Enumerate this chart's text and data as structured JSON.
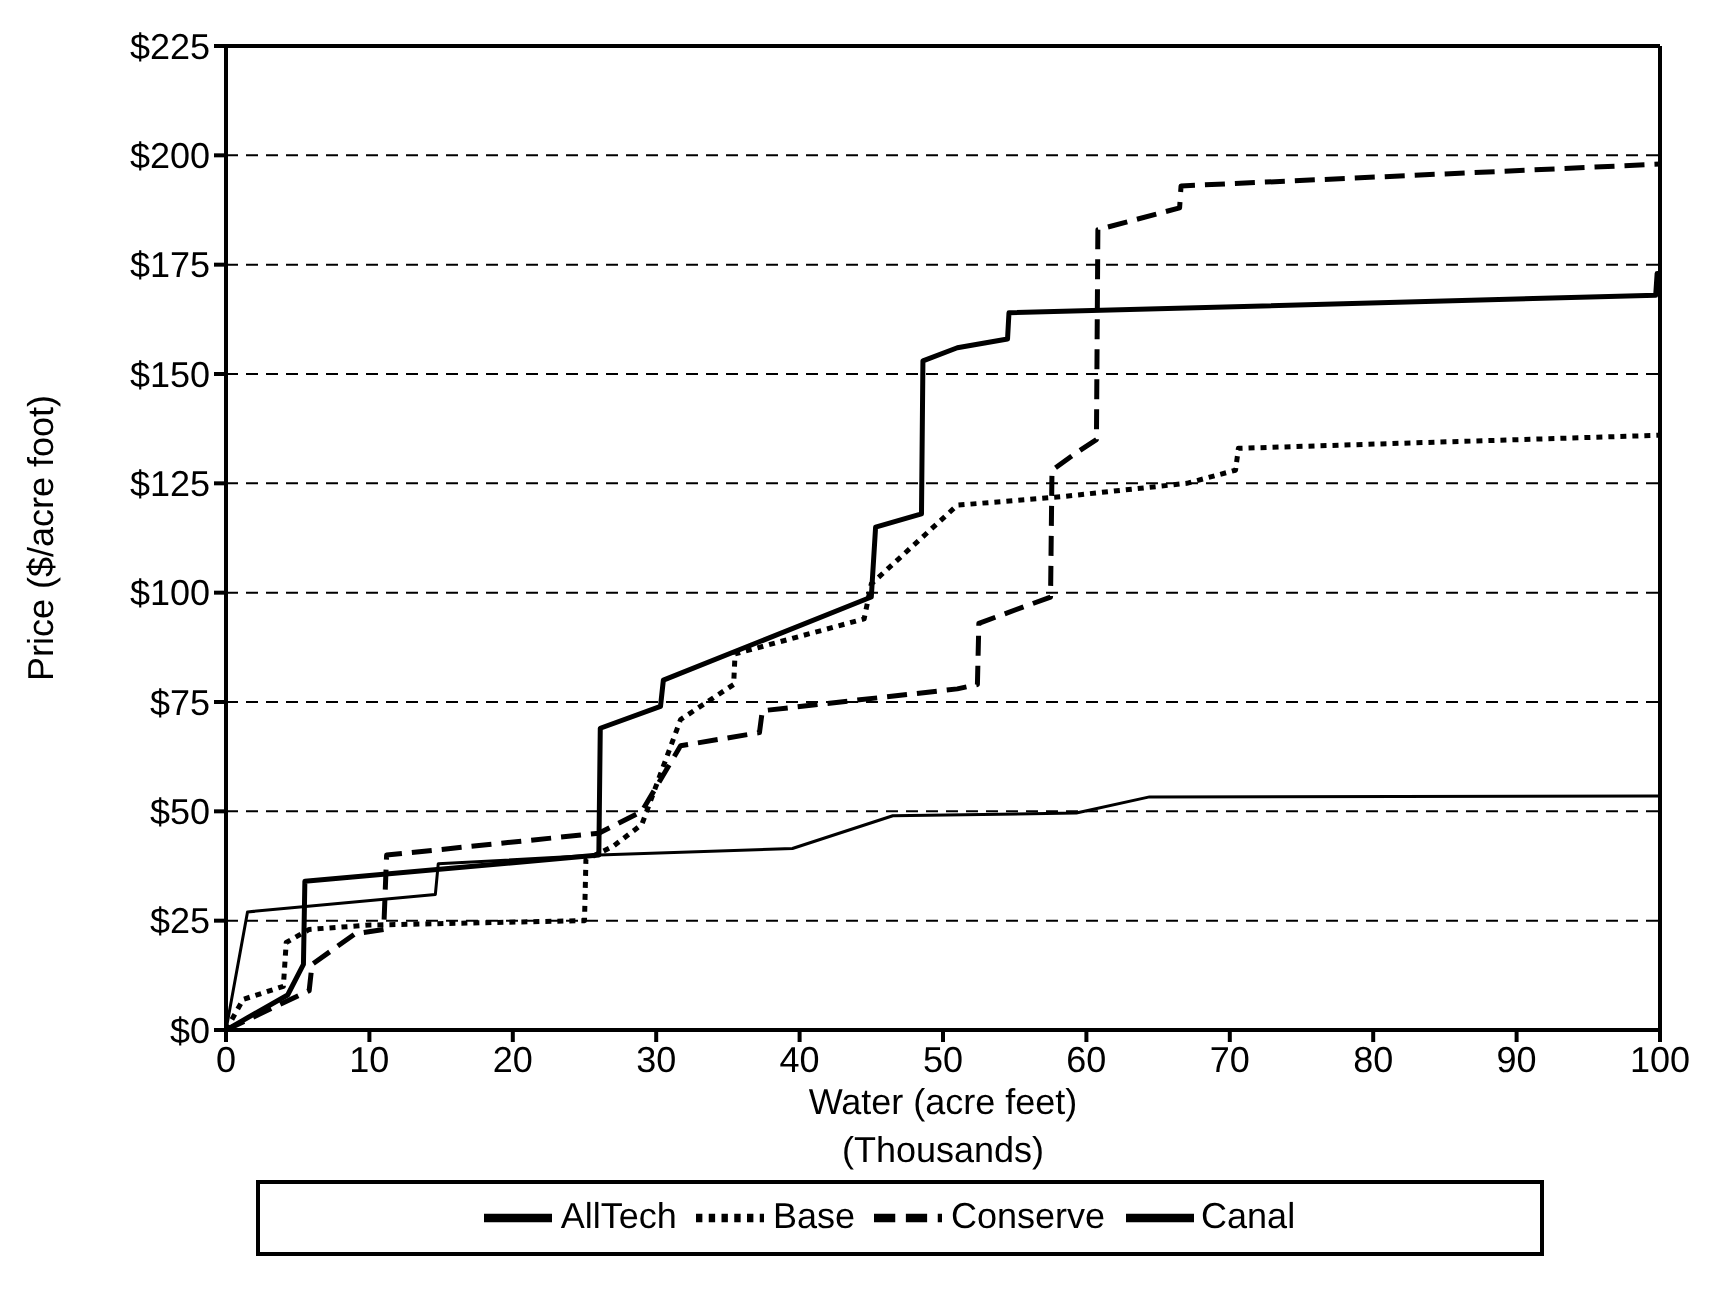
{
  "chart_data": {
    "type": "line",
    "xlabel": "Water (acre feet)\n(Thousands)",
    "ylabel": "Price ($/acre foot)",
    "xlim": [
      0,
      100
    ],
    "xticks": [
      0,
      10,
      20,
      30,
      40,
      50,
      60,
      70,
      80,
      90,
      100
    ],
    "ylim": [
      0,
      225
    ],
    "yticks": [
      {
        "value": 0,
        "label": "$0"
      },
      {
        "value": 25,
        "label": "$25"
      },
      {
        "value": 50,
        "label": "$50"
      },
      {
        "value": 75,
        "label": "$75"
      },
      {
        "value": 100,
        "label": "$100"
      },
      {
        "value": 125,
        "label": "$125"
      },
      {
        "value": 150,
        "label": "$150"
      },
      {
        "value": 175,
        "label": "$175"
      },
      {
        "value": 200,
        "label": "$200"
      },
      {
        "value": 225,
        "label": "$225"
      }
    ],
    "grid": "y",
    "legend": "bottom",
    "marker": "none",
    "series": [
      {
        "name": "AllTech",
        "color": "#000000",
        "line_style": "solid",
        "x": [
          0,
          4.3,
          5.4,
          5.5,
          26,
          26.1,
          30.3,
          30.5,
          45,
          45.3,
          48.5,
          48.6,
          51,
          54.5,
          54.6,
          99.7,
          99.8,
          100
        ],
        "values": [
          0,
          8,
          15,
          34,
          40,
          69,
          74,
          80,
          99,
          115,
          118,
          153,
          156,
          158,
          164,
          168,
          173,
          173
        ]
      },
      {
        "name": "Base",
        "color": "#000000",
        "line_style": "dotted",
        "x": [
          0,
          1.2,
          4,
          4.2,
          5.8,
          10,
          25,
          25.1,
          27,
          29,
          31.7,
          35.4,
          35.5,
          44.5,
          45,
          51,
          58.4,
          67,
          70.4,
          70.6,
          100
        ],
        "values": [
          0,
          7,
          10,
          20,
          23,
          24,
          25,
          39,
          42,
          47,
          71,
          79,
          86,
          94,
          102,
          120,
          122,
          125,
          128,
          133,
          136
        ]
      },
      {
        "name": "Conserve",
        "color": "#000000",
        "line_style": "dashed",
        "x": [
          0,
          5.8,
          6,
          9,
          11,
          11.2,
          26,
          29,
          31.7,
          37.2,
          37.4,
          51,
          52.4,
          52.5,
          57.5,
          57.6,
          59.3,
          60.7,
          60.8,
          66.5,
          66.6,
          100
        ],
        "values": [
          0,
          9,
          15,
          22,
          23,
          40,
          45,
          50,
          65,
          68,
          73,
          78,
          79,
          93,
          99,
          128,
          132,
          135,
          183,
          188,
          193,
          198
        ]
      },
      {
        "name": "Canal",
        "color": "#000000",
        "line_style": "solid",
        "x": [
          0,
          1.5,
          14.6,
          14.8,
          26,
          39.5,
          46.5,
          59.3,
          64.4,
          100
        ],
        "values": [
          0,
          27,
          31,
          38,
          40,
          41.5,
          49,
          49.6,
          53.3,
          53.5
        ]
      }
    ]
  }
}
